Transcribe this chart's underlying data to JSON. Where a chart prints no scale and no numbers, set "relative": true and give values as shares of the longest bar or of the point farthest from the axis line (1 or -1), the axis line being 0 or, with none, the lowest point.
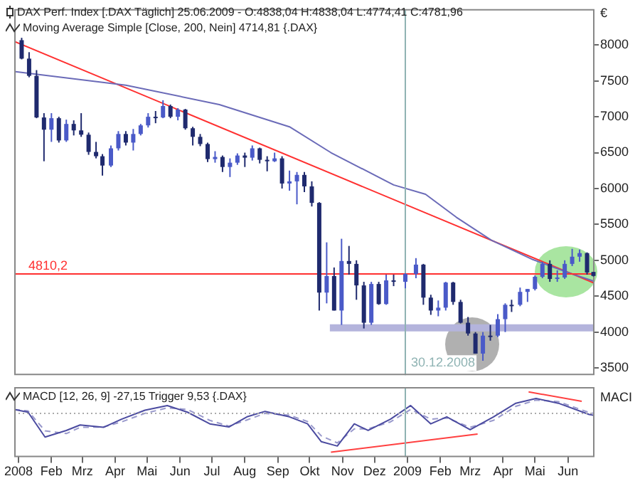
{
  "chart_data": [
    {
      "type": "candlestick",
      "title": "DAX Perf. Index [.DAX  Täglich] 25.06.2009 - O:4838,04 H:4838,04 L:4774,41 C:4781,96",
      "subtitle": "Moving Average Simple [Close, 200, Nein] 4714,81 {.DAX}",
      "ylabel": "€",
      "colors": [
        "#1f2a6e",
        "#1f2a6e",
        "#1f2a6e",
        "#1f2a6e",
        "#4a5ac8",
        "#1f2a6e",
        "#4a5ac8",
        "#1f2a6e",
        "#1f2a6e",
        "#1f2a6e",
        "#1f2a6e",
        "#1f2a6e",
        "#4a5ac8",
        "#4a5ac8",
        "#1f2a6e",
        "#4a5ac8",
        "#4a5ac8",
        "#4a5ac8",
        "#1f2a6e",
        "#4a5ac8",
        "#1f2a6e",
        "#4a5ac8",
        "#1f2a6e",
        "#1f2a6e",
        "#1f2a6e",
        "#1f2a6e",
        "#4a5ac8",
        "#1f2a6e",
        "#4a5ac8",
        "#4a5ac8",
        "#1f2a6e",
        "#4a5ac8",
        "#1f2a6e",
        "#1f2a6e",
        "#4a5ac8",
        "#1f2a6e",
        "#4a5ac8",
        "#4a5ac8",
        "#1f2a6e",
        "#1f2a6e",
        "#1f2a6e",
        "#4a5ac8",
        "#1f2a6e",
        "#4a5ac8",
        "#1f2a6e",
        "#1f2a6e",
        "#1f2a6e",
        "#4a5ac8",
        "#1f2a6e",
        "#4a5ac8",
        "#1f2a6e",
        "#4a5ac8",
        "#4a5ac8",
        "#1f2a6e",
        "#1f2a6e",
        "#4a5ac8",
        "#4a5ac8",
        "#1f2a6e",
        "#1f2a6e",
        "#1f2a6e",
        "#1f2a6e",
        "#4a5ac8",
        "#1f2a6e",
        "#4a5ac8",
        "#4a5ac8",
        "#1f2a6e",
        "#4a5ac8",
        "#4a5ac8",
        "#4a5ac8",
        "#4a5ac8",
        "#1f2a6e",
        "#4a5ac8",
        "#4a5ac8",
        "#4a5ac8",
        "#4a5ac8",
        "#1f2a6e",
        "#1f2a6e"
      ],
      "x": [
        "2008-01-04",
        "2008-01-11",
        "2008-01-18",
        "2008-01-25",
        "2008-02-01",
        "2008-02-08",
        "2008-02-15",
        "2008-02-22",
        "2008-02-29",
        "2008-03-07",
        "2008-03-14",
        "2008-03-20",
        "2008-03-28",
        "2008-04-04",
        "2008-04-11",
        "2008-04-18",
        "2008-04-25",
        "2008-05-02",
        "2008-05-09",
        "2008-05-16",
        "2008-05-23",
        "2008-05-30",
        "2008-06-06",
        "2008-06-13",
        "2008-06-20",
        "2008-06-27",
        "2008-07-04",
        "2008-07-11",
        "2008-07-18",
        "2008-07-25",
        "2008-08-01",
        "2008-08-08",
        "2008-08-15",
        "2008-08-22",
        "2008-08-29",
        "2008-09-05",
        "2008-09-12",
        "2008-09-19",
        "2008-09-26",
        "2008-10-03",
        "2008-10-10",
        "2008-10-17",
        "2008-10-24",
        "2008-10-31",
        "2008-11-07",
        "2008-11-14",
        "2008-11-21",
        "2008-11-28",
        "2008-12-05",
        "2008-12-12",
        "2008-12-19",
        "2008-12-30",
        "2009-01-09",
        "2009-01-16",
        "2009-01-23",
        "2009-01-30",
        "2009-02-06",
        "2009-02-13",
        "2009-02-20",
        "2009-02-27",
        "2009-03-06",
        "2009-03-13",
        "2009-03-20",
        "2009-03-27",
        "2009-04-03",
        "2009-04-09",
        "2009-04-17",
        "2009-04-24",
        "2009-05-01",
        "2009-05-08",
        "2009-05-15",
        "2009-05-22",
        "2009-05-29",
        "2009-06-05",
        "2009-06-12",
        "2009-06-19",
        "2009-06-25"
      ],
      "ohlc": [
        [
          8067,
          8100,
          7800,
          7810
        ],
        [
          7810,
          7900,
          7550,
          7570
        ],
        [
          7570,
          7650,
          6980,
          6990
        ],
        [
          6990,
          7050,
          6380,
          6820
        ],
        [
          6820,
          7050,
          6650,
          6980
        ],
        [
          6980,
          7000,
          6640,
          6670
        ],
        [
          6670,
          6960,
          6650,
          6900
        ],
        [
          6900,
          6950,
          6740,
          6810
        ],
        [
          6810,
          7050,
          6720,
          6750
        ],
        [
          6750,
          6780,
          6470,
          6510
        ],
        [
          6510,
          6650,
          6420,
          6450
        ],
        [
          6450,
          6480,
          6180,
          6320
        ],
        [
          6320,
          6600,
          6300,
          6560
        ],
        [
          6560,
          6800,
          6530,
          6760
        ],
        [
          6760,
          6800,
          6600,
          6640
        ],
        [
          6640,
          6830,
          6530,
          6760
        ],
        [
          6760,
          6900,
          6740,
          6880
        ],
        [
          6880,
          7050,
          6850,
          7000
        ],
        [
          7000,
          7080,
          6910,
          6990
        ],
        [
          6990,
          7230,
          6980,
          7150
        ],
        [
          7150,
          7170,
          6980,
          7000
        ],
        [
          7000,
          7120,
          6950,
          7100
        ],
        [
          7100,
          7110,
          6820,
          6840
        ],
        [
          6840,
          6860,
          6600,
          6720
        ],
        [
          6720,
          6760,
          6590,
          6620
        ],
        [
          6620,
          6640,
          6370,
          6410
        ],
        [
          6410,
          6520,
          6360,
          6440
        ],
        [
          6440,
          6460,
          6230,
          6300
        ],
        [
          6300,
          6420,
          6160,
          6360
        ],
        [
          6360,
          6490,
          6330,
          6460
        ],
        [
          6460,
          6500,
          6300,
          6430
        ],
        [
          6430,
          6600,
          6390,
          6560
        ],
        [
          6560,
          6570,
          6350,
          6400
        ],
        [
          6400,
          6450,
          6240,
          6380
        ],
        [
          6380,
          6500,
          6370,
          6420
        ],
        [
          6420,
          6450,
          6000,
          6070
        ],
        [
          6070,
          6250,
          5970,
          6100
        ],
        [
          6100,
          6230,
          5780,
          6190
        ],
        [
          6190,
          6230,
          5950,
          6030
        ],
        [
          6030,
          6100,
          5750,
          5800
        ],
        [
          5800,
          5810,
          4300,
          4550
        ],
        [
          4550,
          5250,
          4400,
          4780
        ],
        [
          4780,
          4900,
          4300,
          4300
        ],
        [
          4300,
          5300,
          4100,
          4990
        ],
        [
          4990,
          5200,
          4800,
          4950
        ],
        [
          4950,
          5000,
          4450,
          4650
        ],
        [
          4650,
          4700,
          4050,
          4130
        ],
        [
          4130,
          4700,
          4100,
          4670
        ],
        [
          4670,
          4700,
          4380,
          4390
        ],
        [
          4390,
          4800,
          4380,
          4720
        ],
        [
          4720,
          4800,
          4640,
          4700
        ],
        [
          4700,
          4820,
          4610,
          4810
        ],
        [
          4810,
          5030,
          4750,
          4940
        ],
        [
          4940,
          4950,
          4380,
          4480
        ],
        [
          4480,
          4520,
          4240,
          4300
        ],
        [
          4300,
          4440,
          4220,
          4340
        ],
        [
          4340,
          4700,
          4300,
          4690
        ],
        [
          4690,
          4700,
          4380,
          4420
        ],
        [
          4420,
          4450,
          4120,
          4130
        ],
        [
          4130,
          4210,
          3950,
          3980
        ],
        [
          3980,
          4000,
          3700,
          3700
        ],
        [
          3700,
          4000,
          3600,
          3950
        ],
        [
          3950,
          4100,
          3880,
          3950
        ],
        [
          3950,
          4250,
          3930,
          4180
        ],
        [
          4180,
          4400,
          4000,
          4380
        ],
        [
          4380,
          4450,
          4280,
          4380
        ],
        [
          4380,
          4620,
          4360,
          4560
        ],
        [
          4560,
          4600,
          4420,
          4600
        ],
        [
          4600,
          4790,
          4580,
          4770
        ],
        [
          4770,
          4980,
          4750,
          4950
        ],
        [
          4950,
          5000,
          4700,
          4740
        ],
        [
          4740,
          4860,
          4700,
          4760
        ],
        [
          4760,
          5000,
          4740,
          4950
        ],
        [
          4950,
          5160,
          4920,
          5050
        ],
        [
          5050,
          5150,
          4980,
          5100
        ],
        [
          5100,
          5110,
          4800,
          4830
        ],
        [
          4838.04,
          4838.04,
          4774.41,
          4781.96
        ]
      ],
      "series": [
        {
          "type": "line",
          "color": "#6b6bb8",
          "x": [
            "2007-12-28",
            "2008-04-11",
            "2008-07-08",
            "2008-09-12",
            "2008-10-21",
            "2008-12-19",
            "2009-01-18",
            "2009-02-16",
            "2009-03-21",
            "2009-04-29",
            "2009-06-01",
            "2009-06-25"
          ],
          "values": [
            7630,
            7440,
            7170,
            6860,
            6500,
            6050,
            5920,
            5600,
            5280,
            5010,
            4830,
            4710
          ]
        },
        {
          "type": "line",
          "color": "#ff3030",
          "x": [
            "2007-12-28",
            "2009-06-26"
          ],
          "values": [
            8050,
            4680
          ]
        },
        {
          "type": "line",
          "color": "#b4b4dc",
          "x": [
            "2008-10-20",
            "2009-06-26"
          ],
          "values": [
            4060,
            4060
          ]
        }
      ],
      "xlim": [
        "2007-12-28",
        "2009-06-26"
      ],
      "ylim": [
        3400,
        8500
      ],
      "yticks": [
        3500,
        4000,
        4500,
        5000,
        5500,
        6000,
        6500,
        7000,
        7500,
        8000
      ],
      "tick_labels": "y",
      "legend": false,
      "marker": "none",
      "ref_lines": [
        {
          "axis": "y",
          "value": 4810.2,
          "label": "4810,2",
          "color": "#ff3030"
        },
        {
          "axis": "x",
          "value": "2008-12-30",
          "label": "30.12.2008",
          "color": "#8fb3b3"
        }
      ]
    },
    {
      "type": "line",
      "title": "MACD [12, 26, 9] -27,15 Trigger 9,53 {.DAX}",
      "ylabel": "MACI",
      "relative": true,
      "series": [
        {
          "type": "line",
          "color": "#4b4ba0",
          "line_style": "solid",
          "x": [
            "2007-12-28",
            "2008-01-10",
            "2008-01-26",
            "2008-02-15",
            "2008-02-28",
            "2008-03-21",
            "2008-04-07",
            "2008-04-29",
            "2008-05-20",
            "2008-06-08",
            "2008-06-29",
            "2008-07-17",
            "2008-08-03",
            "2008-08-20",
            "2008-09-12",
            "2008-09-29",
            "2008-10-12",
            "2008-10-27",
            "2008-11-12",
            "2008-11-25",
            "2008-12-16",
            "2009-01-04",
            "2009-01-23",
            "2009-02-07",
            "2009-03-01",
            "2009-03-23",
            "2009-04-13",
            "2009-05-02",
            "2009-05-23",
            "2009-06-21",
            "2009-06-25"
          ],
          "values": [
            0.1,
            0.03,
            -0.61,
            -0.44,
            -0.3,
            -0.36,
            -0.15,
            0.08,
            0.2,
            0.03,
            -0.27,
            -0.35,
            -0.09,
            0.05,
            -0.09,
            -0.27,
            -0.73,
            -0.84,
            -0.27,
            -0.44,
            -0.15,
            0.2,
            -0.27,
            -0.09,
            -0.42,
            -0.09,
            0.26,
            0.38,
            0.26,
            -0.03,
            -0.05
          ]
        },
        {
          "type": "line",
          "color": "#9999cc",
          "line_style": "dashed",
          "x": [
            "2007-12-28",
            "2008-01-10",
            "2008-01-26",
            "2008-02-15",
            "2008-02-28",
            "2008-03-21",
            "2008-04-07",
            "2008-04-29",
            "2008-05-20",
            "2008-06-08",
            "2008-06-29",
            "2008-07-17",
            "2008-08-03",
            "2008-08-20",
            "2008-09-12",
            "2008-09-29",
            "2008-10-12",
            "2008-10-27",
            "2008-11-12",
            "2008-11-25",
            "2008-12-16",
            "2009-01-04",
            "2009-01-23",
            "2009-02-07",
            "2009-03-01",
            "2009-03-23",
            "2009-04-13",
            "2009-05-02",
            "2009-05-23",
            "2009-06-21",
            "2009-06-25"
          ],
          "values": [
            0.1,
            0.06,
            -0.45,
            -0.52,
            -0.36,
            -0.35,
            -0.22,
            0.0,
            0.14,
            0.1,
            -0.18,
            -0.33,
            -0.17,
            0.0,
            -0.05,
            -0.21,
            -0.58,
            -0.76,
            -0.4,
            -0.4,
            -0.22,
            0.1,
            -0.15,
            -0.12,
            -0.36,
            -0.18,
            0.18,
            0.34,
            0.3,
            0.02,
            0.0
          ]
        },
        {
          "type": "line",
          "color": "#ff4040",
          "line_style": "solid",
          "x": [
            "2008-10-21",
            "2009-03-08"
          ],
          "values": [
            -1,
            -0.53
          ]
        },
        {
          "type": "line",
          "color": "#ff4040",
          "line_style": "solid",
          "x": [
            "2009-04-25",
            "2009-06-14"
          ],
          "values": [
            0.55,
            0.31
          ]
        }
      ],
      "xlim": [
        "2007-12-28",
        "2009-06-26"
      ],
      "xticks": [
        {
          "value": "2008-01-01",
          "label": "2008"
        },
        {
          "value": "2008-02-01",
          "label": "Feb"
        },
        {
          "value": "2008-03-01",
          "label": "Mrz"
        },
        {
          "value": "2008-04-01",
          "label": "Apr"
        },
        {
          "value": "2008-05-01",
          "label": "Mai"
        },
        {
          "value": "2008-06-01",
          "label": "Jun"
        },
        {
          "value": "2008-07-01",
          "label": "Jul"
        },
        {
          "value": "2008-08-01",
          "label": "Aug"
        },
        {
          "value": "2008-09-01",
          "label": "Sep"
        },
        {
          "value": "2008-10-01",
          "label": "Okt"
        },
        {
          "value": "2008-11-01",
          "label": "Nov"
        },
        {
          "value": "2008-12-01",
          "label": "Dez"
        },
        {
          "value": "2009-01-01",
          "label": "2009"
        },
        {
          "value": "2009-02-01",
          "label": "Feb"
        },
        {
          "value": "2009-03-01",
          "label": "Mrz"
        },
        {
          "value": "2009-04-01",
          "label": "Apr"
        },
        {
          "value": "2009-05-01",
          "label": "Mai"
        },
        {
          "value": "2009-06-01",
          "label": "Jun"
        }
      ],
      "tick_labels": "x",
      "legend": false,
      "marker": "none",
      "ref_lines": [
        {
          "axis": "y",
          "value": 0,
          "color": "#aaaaaa",
          "line_style": "dotted"
        },
        {
          "axis": "x",
          "value": "2008-12-30",
          "color": "#8fb3b3"
        }
      ]
    }
  ]
}
